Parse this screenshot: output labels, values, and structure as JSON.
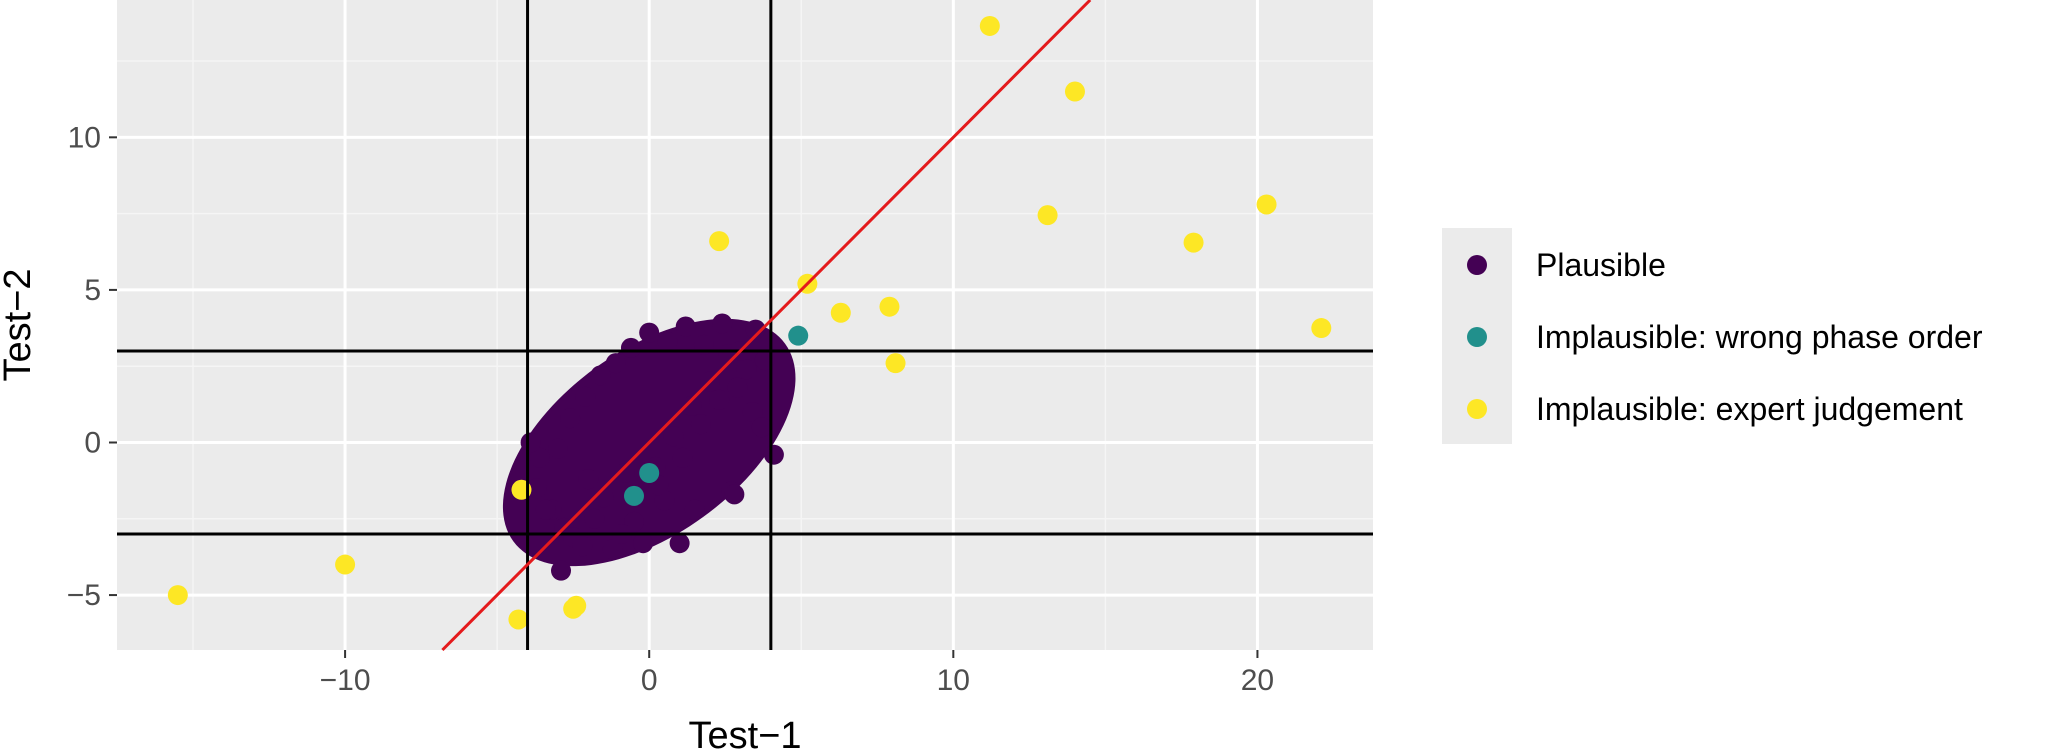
{
  "chart_data": {
    "type": "scatter",
    "title": "",
    "xlabel": "Test−1",
    "ylabel": "Test−2",
    "xlim": [
      -17.5,
      23.8
    ],
    "ylim": [
      -6.8,
      14.5
    ],
    "x_ticks": [
      -10,
      0,
      10,
      20
    ],
    "x_tick_labels": [
      "−10",
      "0",
      "10",
      "20"
    ],
    "y_ticks": [
      -5,
      0,
      5,
      10
    ],
    "y_tick_labels": [
      "−5",
      "0",
      "5",
      "10"
    ],
    "grid": true,
    "legend_position": "right",
    "reference_lines": {
      "vertical": [
        -4,
        4
      ],
      "horizontal": [
        -3,
        3
      ],
      "diagonal": {
        "slope": 1,
        "intercept": 0,
        "color": "#e41a1c"
      }
    },
    "series": [
      {
        "name": "Plausible",
        "color": "#440154",
        "cloud": {
          "center": [
            0,
            0
          ],
          "description": "dense elliptical cluster"
        },
        "x": [
          -3.7,
          -3.2,
          -2.8,
          -2.5,
          -2.2,
          -1.8,
          -1.5,
          -1.2,
          -0.8,
          -0.5,
          -0.2,
          0.2,
          0.5,
          0.8,
          1.1,
          1.4,
          1.7,
          2.0,
          2.3,
          2.6,
          2.9,
          3.2,
          3.5,
          -3.6,
          -3.9,
          -3.0,
          -2.6,
          -2.1,
          -1.6,
          -1.1,
          -0.6,
          0.0,
          0.6,
          1.2,
          1.8,
          2.4,
          3.0,
          3.4,
          3.7,
          4.1,
          3.8,
          2.7,
          1.5,
          0.3,
          -0.9,
          -2.0,
          -2.9,
          -3.4,
          1.0,
          2.8
        ],
        "y": [
          -1.5,
          -2.2,
          -2.8,
          -3.1,
          -3.4,
          -2.5,
          -1.8,
          -3.5,
          -1.0,
          -2.6,
          -3.3,
          -0.8,
          -1.9,
          0.2,
          -0.5,
          1.2,
          0.6,
          2.0,
          1.4,
          2.9,
          1.8,
          2.4,
          3.7,
          -0.5,
          0.0,
          -0.2,
          0.8,
          1.5,
          2.2,
          2.6,
          3.1,
          3.6,
          3.3,
          3.8,
          3.2,
          3.9,
          3.0,
          1.0,
          0.5,
          -0.4,
          2.7,
          -1.6,
          -2.2,
          -1.4,
          -3.0,
          -1.2,
          -4.2,
          -2.2,
          -3.3,
          -1.7
        ]
      },
      {
        "name": "Implausible: wrong phase order",
        "color": "#21908c",
        "x": [
          4.9,
          0.0,
          -0.5
        ],
        "y": [
          3.5,
          -1.0,
          -1.75
        ]
      },
      {
        "name": "Implausible: expert judgement",
        "color": "#fde725",
        "x": [
          11.2,
          14.0,
          13.1,
          20.3,
          17.9,
          22.1,
          2.3,
          5.2,
          6.3,
          7.9,
          8.1,
          -4.2,
          -15.5,
          -10.0,
          -2.4,
          -2.5,
          -4.3
        ],
        "y": [
          13.65,
          11.5,
          7.45,
          7.8,
          6.55,
          3.75,
          6.6,
          5.2,
          4.25,
          4.45,
          2.6,
          -1.55,
          -5.0,
          -4.0,
          -5.35,
          -5.45,
          -5.8
        ]
      }
    ]
  }
}
